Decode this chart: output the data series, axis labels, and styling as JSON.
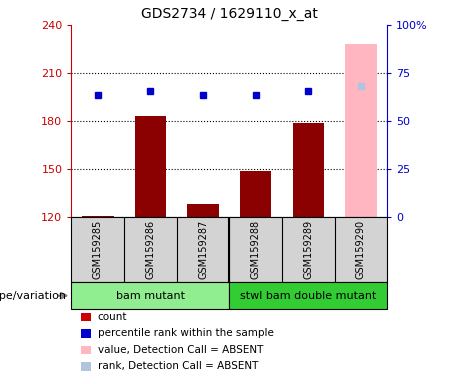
{
  "title": "GDS2734 / 1629110_x_at",
  "samples": [
    "GSM159285",
    "GSM159286",
    "GSM159287",
    "GSM159288",
    "GSM159289",
    "GSM159290"
  ],
  "bar_values": [
    120.5,
    183,
    128,
    149,
    179,
    228
  ],
  "bar_colors": [
    "#8b0000",
    "#8b0000",
    "#8b0000",
    "#8b0000",
    "#8b0000",
    "#ffb6c1"
  ],
  "dot_values": [
    196,
    199,
    196,
    196,
    199,
    202
  ],
  "dot_colors": [
    "#0000cd",
    "#0000cd",
    "#0000cd",
    "#0000cd",
    "#0000cd",
    "#b0c4de"
  ],
  "ylim_left": [
    120,
    240
  ],
  "ylim_right": [
    0,
    100
  ],
  "yticks_left": [
    120,
    150,
    180,
    210,
    240
  ],
  "yticks_right": [
    0,
    25,
    50,
    75,
    100
  ],
  "ytick_labels_right": [
    "0",
    "25",
    "50",
    "75",
    "100%"
  ],
  "hlines": [
    150,
    180,
    210
  ],
  "groups": [
    {
      "label": "bam mutant",
      "indices": [
        0,
        1,
        2
      ],
      "color": "#90ee90"
    },
    {
      "label": "stwl bam double mutant",
      "indices": [
        3,
        4,
        5
      ],
      "color": "#32cd32"
    }
  ],
  "group_label": "genotype/variation",
  "legend_items": [
    {
      "color": "#cc0000",
      "label": "count"
    },
    {
      "color": "#0000cc",
      "label": "percentile rank within the sample"
    },
    {
      "color": "#ffb6c1",
      "label": "value, Detection Call = ABSENT"
    },
    {
      "color": "#b0c4de",
      "label": "rank, Detection Call = ABSENT"
    }
  ],
  "bar_bottom": 120,
  "bar_width": 0.6,
  "left_axis_color": "#cc0000",
  "right_axis_color": "#0000cc",
  "tick_area_color": "#d3d3d3"
}
